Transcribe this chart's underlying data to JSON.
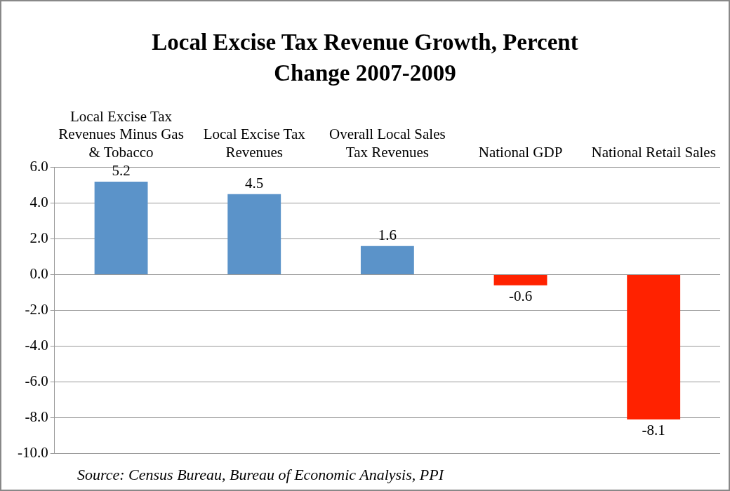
{
  "chart_data": {
    "type": "bar",
    "title": "Local Excise Tax Revenue Growth, Percent Change 2007-2009",
    "categories": [
      "Local Excise Tax Revenues Minus Gas & Tobacco",
      "Local Excise Tax Revenues",
      "Overall Local Sales Tax Revenues",
      "National GDP",
      "National Retail Sales"
    ],
    "values": [
      5.2,
      4.5,
      1.6,
      -0.6,
      -8.1
    ],
    "colors": [
      "#5b93c9",
      "#5b93c9",
      "#5b93c9",
      "#ff2200",
      "#ff2200"
    ],
    "ylim": [
      -10,
      6
    ],
    "yticks": [
      {
        "value": -10,
        "label": "-10.0"
      },
      {
        "value": -8,
        "label": "-8.0"
      },
      {
        "value": -6,
        "label": "-6.0"
      },
      {
        "value": -4,
        "label": "-4.0"
      },
      {
        "value": -2,
        "label": "-2.0"
      },
      {
        "value": 0,
        "label": "0.0"
      },
      {
        "value": 2,
        "label": "2.0"
      },
      {
        "value": 4,
        "label": "4.0"
      },
      {
        "value": 6,
        "label": "6.0"
      }
    ],
    "grid": "y",
    "data_labels": true,
    "annotations": [
      "Source:  Census Bureau, Bureau of Economic Analysis, PPI"
    ]
  }
}
